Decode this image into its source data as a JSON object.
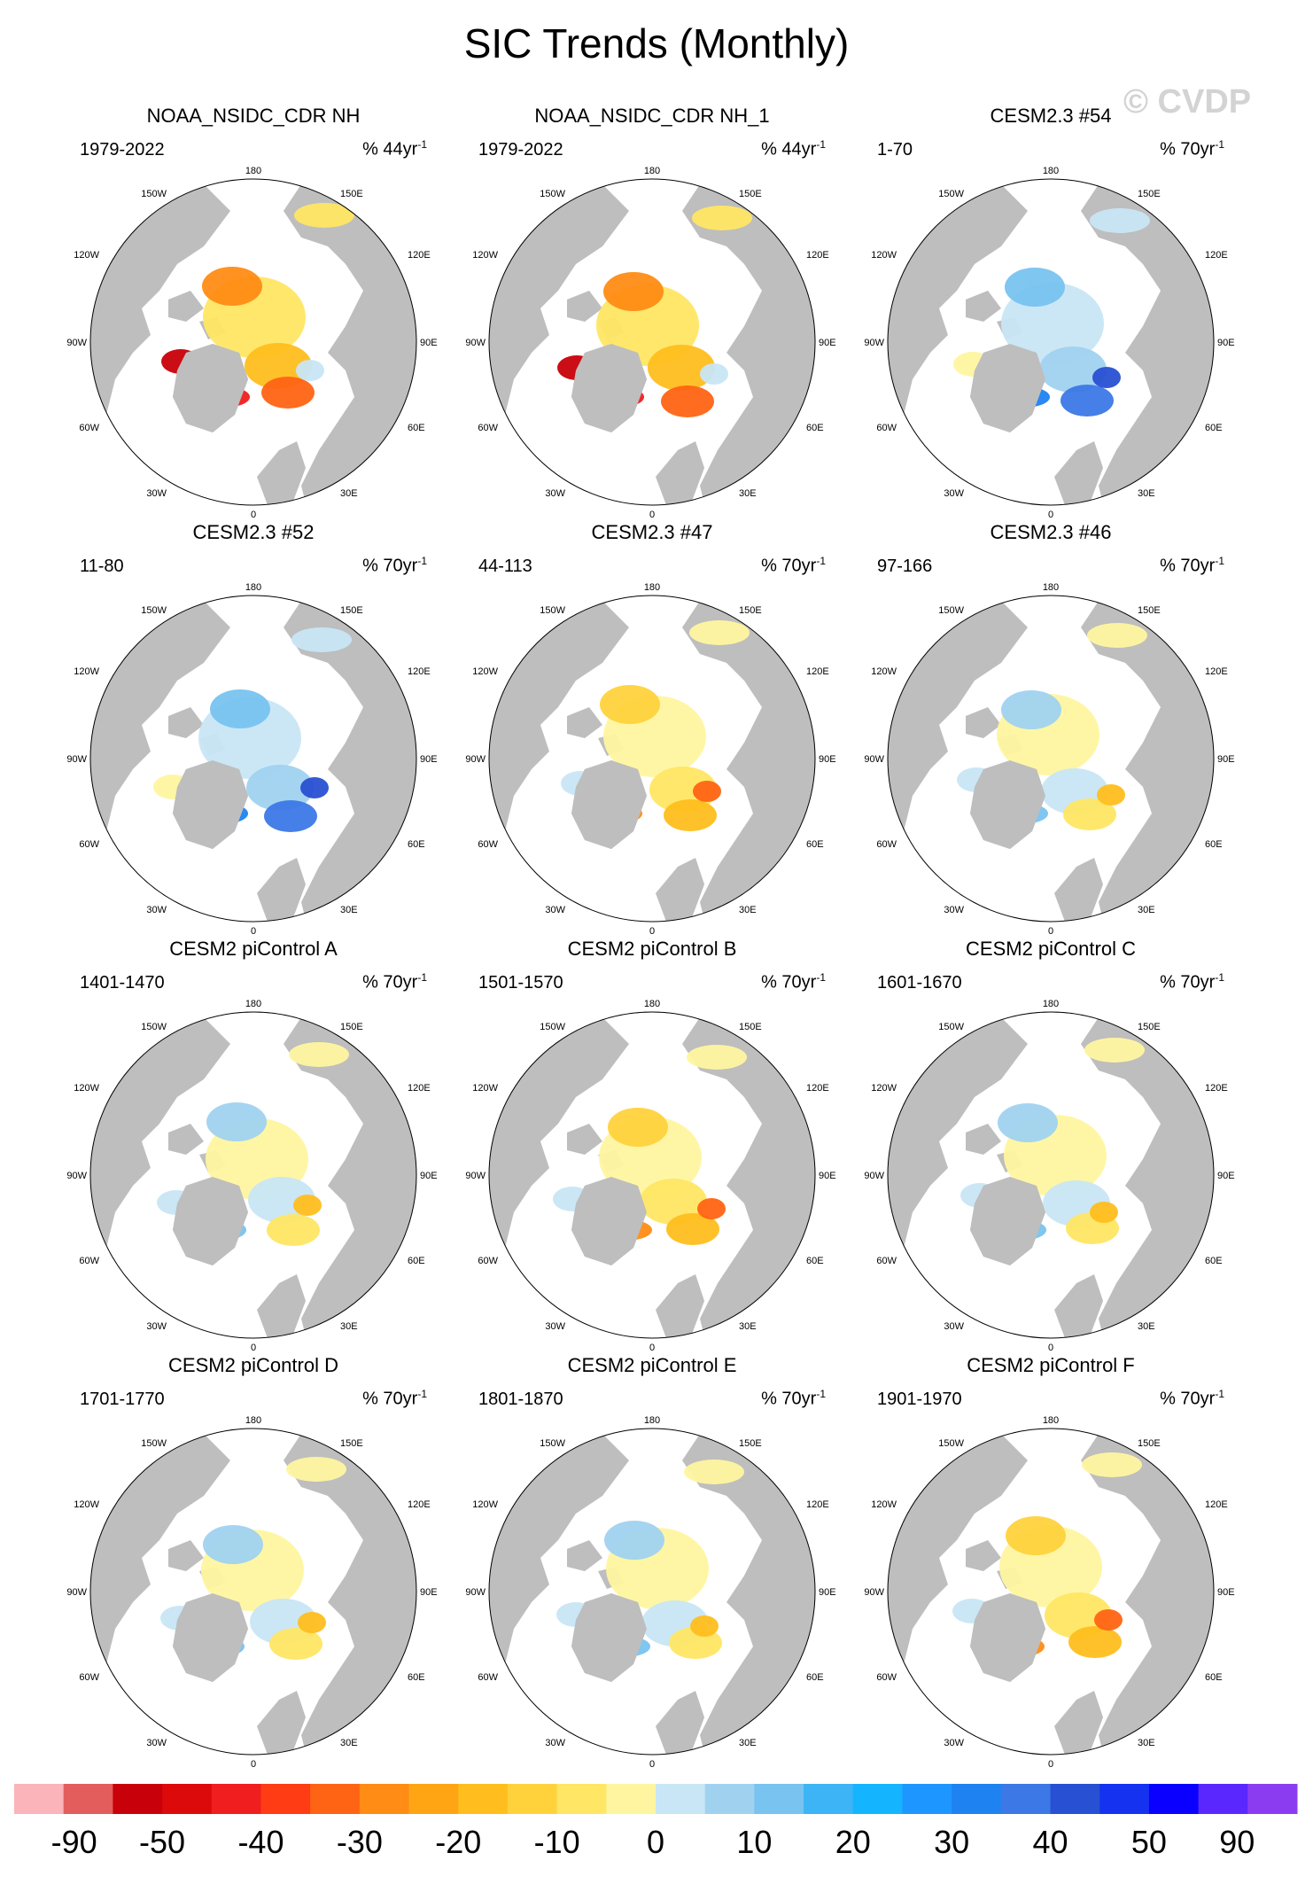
{
  "title": "SIC Trends (Monthly)",
  "watermark": "© CVDP",
  "map_labels": {
    "lon_top": "180",
    "lon_bottom": "0",
    "lon_150w": "150W",
    "lon_150e": "150E",
    "lon_120w": "120W",
    "lon_120e": "120E",
    "lon_90w": "90W",
    "lon_90e": "90E",
    "lon_60w": "60W",
    "lon_60e": "60E",
    "lon_30w": "30W",
    "lon_30e": "30E"
  },
  "colors": {
    "land": "#bebebe",
    "open_ocean": "#ffffff",
    "border": "#000000"
  },
  "panels": [
    {
      "title": "NOAA_NSIDC_CDR NH",
      "period": "1979-2022",
      "units_prefix": "% 44yr",
      "units_sup": "-1",
      "pattern": "obs"
    },
    {
      "title": "NOAA_NSIDC_CDR NH_1",
      "period": "1979-2022",
      "units_prefix": "% 44yr",
      "units_sup": "-1",
      "pattern": "obs"
    },
    {
      "title": "CESM2.3 #54",
      "period": "1-70",
      "units_prefix": "% 70yr",
      "units_sup": "-1",
      "pattern": "blue"
    },
    {
      "title": "CESM2.3 #52",
      "period": "11-80",
      "units_prefix": "% 70yr",
      "units_sup": "-1",
      "pattern": "blue"
    },
    {
      "title": "CESM2.3 #47",
      "period": "44-113",
      "units_prefix": "% 70yr",
      "units_sup": "-1",
      "pattern": "warm"
    },
    {
      "title": "CESM2.3 #46",
      "period": "97-166",
      "units_prefix": "% 70yr",
      "units_sup": "-1",
      "pattern": "mixed"
    },
    {
      "title": "CESM2 piControl A",
      "period": "1401-1470",
      "units_prefix": "% 70yr",
      "units_sup": "-1",
      "pattern": "mixed"
    },
    {
      "title": "CESM2 piControl B",
      "period": "1501-1570",
      "units_prefix": "% 70yr",
      "units_sup": "-1",
      "pattern": "warm"
    },
    {
      "title": "CESM2 piControl C",
      "period": "1601-1670",
      "units_prefix": "% 70yr",
      "units_sup": "-1",
      "pattern": "mixed"
    },
    {
      "title": "CESM2 piControl D",
      "period": "1701-1770",
      "units_prefix": "% 70yr",
      "units_sup": "-1",
      "pattern": "mixed"
    },
    {
      "title": "CESM2 piControl E",
      "period": "1801-1870",
      "units_prefix": "% 70yr",
      "units_sup": "-1",
      "pattern": "mixed"
    },
    {
      "title": "CESM2 piControl F",
      "period": "1901-1970",
      "units_prefix": "% 70yr",
      "units_sup": "-1",
      "pattern": "warm"
    }
  ],
  "colorbar": {
    "colors": [
      "#fbb4b9",
      "#e35d5d",
      "#c8000a",
      "#dc0a0a",
      "#f01e1e",
      "#ff3c14",
      "#ff6414",
      "#ff8c14",
      "#ffa514",
      "#ffbe1e",
      "#ffd23c",
      "#ffe664",
      "#fff5a0",
      "#c8e6f5",
      "#a0d2f0",
      "#78c3f0",
      "#3cb4f5",
      "#14b4ff",
      "#1e96ff",
      "#1e82f0",
      "#3c78e6",
      "#2850d2",
      "#1432f0",
      "#0a00ff",
      "#5a28ff",
      "#8c3cf0"
    ],
    "labels": [
      "-90",
      "-50",
      "-40",
      "-30",
      "-20",
      "-10",
      "0",
      "10",
      "20",
      "30",
      "40",
      "50",
      "90"
    ]
  }
}
